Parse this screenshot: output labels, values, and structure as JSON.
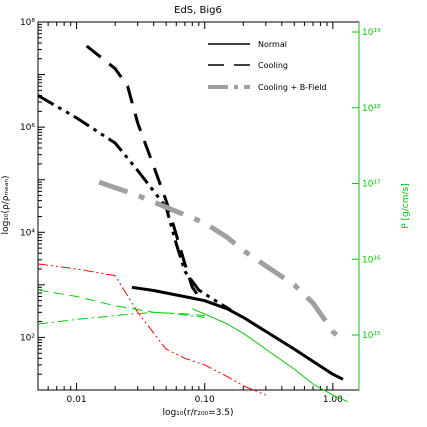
{
  "chart_data": {
    "type": "line",
    "title": "EdS, Big6",
    "xlabel": "log₁₀(r/r₂₀₀=3.5)",
    "ylabel": "log₁₀(ρ/ρₘₑₐₙ)",
    "ylabel_right": "P [g/cm/s]",
    "x_scale": "log",
    "y_scale": "log",
    "xlim": [
      0.005,
      1.6
    ],
    "ylim": [
      10,
      100000000
    ],
    "x_ticks": [
      {
        "value": 0.01,
        "label": "0.01"
      },
      {
        "value": 0.1,
        "label": "0.10"
      },
      {
        "value": 1.0,
        "label": "1.00"
      }
    ],
    "y_ticks": [
      {
        "value": 100,
        "label": "10²"
      },
      {
        "value": 10000,
        "label": "10⁴"
      },
      {
        "value": 1000000,
        "label": "10⁶"
      },
      {
        "value": 100000000,
        "label": "10⁸"
      }
    ],
    "y2_ticks": [
      {
        "frac": 0.0,
        "label": "10¹⁵"
      },
      {
        "frac": 0.25,
        "label": "10¹⁶"
      },
      {
        "frac": 0.5,
        "label": "10¹⁷"
      },
      {
        "frac": 0.75,
        "label": "10¹⁸"
      },
      {
        "frac": 1.0,
        "label": "10¹⁹"
      }
    ],
    "legend_position": "top-right",
    "legend": [
      {
        "label": "Normal",
        "style": "solid",
        "color": "#000000"
      },
      {
        "label": "Cooling",
        "style": "dashed",
        "color": "#000000"
      },
      {
        "label": "Cooling + B-Field",
        "style": "dash-dot",
        "color": "#a0a0a0"
      }
    ],
    "series": [
      {
        "style": "solid",
        "color": "#000000",
        "width": 3,
        "points": [
          [
            0.027,
            900
          ],
          [
            0.04,
            780
          ],
          [
            0.06,
            640
          ],
          [
            0.08,
            560
          ],
          [
            0.1,
            500
          ],
          [
            0.15,
            350
          ],
          [
            0.2,
            240
          ],
          [
            0.3,
            130
          ],
          [
            0.5,
            60
          ],
          [
            0.7,
            35
          ],
          [
            1.0,
            20
          ],
          [
            1.2,
            16
          ]
        ]
      },
      {
        "style": "dashed",
        "color": "#000000",
        "width": 3,
        "points": [
          [
            0.012,
            35000000
          ],
          [
            0.02,
            13000000
          ],
          [
            0.025,
            6000000
          ],
          [
            0.03,
            1200000
          ],
          [
            0.04,
            180000
          ],
          [
            0.05,
            40000
          ],
          [
            0.06,
            9000
          ],
          [
            0.07,
            2500
          ],
          [
            0.08,
            900
          ],
          [
            0.09,
            600
          ]
        ]
      },
      {
        "style": "dash-dot-dot",
        "color": "#000000",
        "width": 3,
        "points": [
          [
            0.005,
            4000000
          ],
          [
            0.01,
            1500000
          ],
          [
            0.02,
            500000
          ],
          [
            0.03,
            150000
          ],
          [
            0.05,
            30000
          ],
          [
            0.06,
            6000
          ],
          [
            0.07,
            1800
          ],
          [
            0.09,
            800
          ],
          [
            0.13,
            450
          ],
          [
            0.16,
            330
          ]
        ]
      },
      {
        "style": "dash-dot",
        "color": "#a0a0a0",
        "width": 5,
        "points": [
          [
            0.015,
            90000
          ],
          [
            0.03,
            50000
          ],
          [
            0.05,
            30000
          ],
          [
            0.1,
            15000
          ],
          [
            0.15,
            8000
          ],
          [
            0.2,
            4500
          ],
          [
            0.3,
            2300
          ],
          [
            0.5,
            1000
          ],
          [
            0.7,
            450
          ],
          [
            0.85,
            230
          ],
          [
            1.0,
            130
          ],
          [
            1.2,
            85
          ]
        ]
      },
      {
        "style": "dash-dot-dot",
        "color": "#ff0000",
        "width": 1,
        "points": [
          [
            0.005,
            2500
          ],
          [
            0.01,
            2000
          ],
          [
            0.02,
            1500
          ],
          [
            0.03,
            300
          ],
          [
            0.05,
            60
          ],
          [
            0.07,
            40
          ],
          [
            0.1,
            30
          ],
          [
            0.15,
            18
          ],
          [
            0.2,
            12
          ],
          [
            0.3,
            8
          ]
        ]
      },
      {
        "style": "dashed",
        "color": "#00cc00",
        "width": 1,
        "points": [
          [
            0.005,
            800
          ],
          [
            0.01,
            600
          ],
          [
            0.02,
            400
          ],
          [
            0.04,
            300
          ],
          [
            0.07,
            280
          ],
          [
            0.1,
            260
          ]
        ]
      },
      {
        "style": "dash-dot",
        "color": "#00cc00",
        "width": 1,
        "points": [
          [
            0.005,
            180
          ],
          [
            0.01,
            220
          ],
          [
            0.02,
            260
          ],
          [
            0.04,
            300
          ],
          [
            0.06,
            280
          ],
          [
            0.1,
            240
          ]
        ]
      },
      {
        "style": "solid",
        "color": "#00cc00",
        "width": 1,
        "points": [
          [
            0.08,
            350
          ],
          [
            0.1,
            280
          ],
          [
            0.15,
            180
          ],
          [
            0.2,
            120
          ],
          [
            0.3,
            60
          ],
          [
            0.5,
            25
          ],
          [
            0.7,
            13
          ],
          [
            1.0,
            8
          ],
          [
            1.3,
            6
          ]
        ]
      }
    ]
  }
}
